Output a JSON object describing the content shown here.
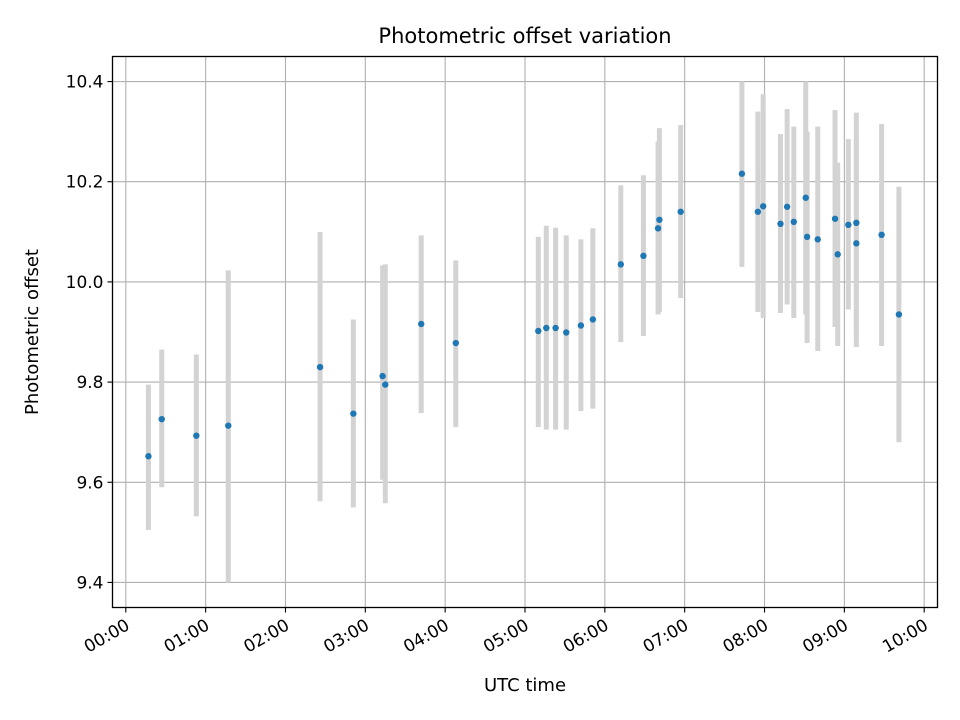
{
  "chart_data": {
    "type": "scatter",
    "title": "Photometric offset variation",
    "xlabel": "UTC time",
    "ylabel": "Photometric offset",
    "xlim": [
      "23:50",
      "10:10"
    ],
    "ylim": [
      9.35,
      10.45
    ],
    "xticks": [
      "00:00",
      "01:00",
      "02:00",
      "03:00",
      "04:00",
      "05:00",
      "06:00",
      "07:00",
      "08:00",
      "09:00",
      "10:00"
    ],
    "yticks": [
      "9.4",
      "9.6",
      "9.8",
      "10.0",
      "10.2",
      "10.4"
    ],
    "grid": true,
    "marker_color": "#1f77b4",
    "errorbar_color": "#d3d3d3",
    "points": [
      {
        "x": "00:17",
        "y": 9.652,
        "ylow": 9.505,
        "yhigh": 9.795
      },
      {
        "x": "00:27",
        "y": 9.726,
        "ylow": 9.59,
        "yhigh": 9.865
      },
      {
        "x": "00:53",
        "y": 9.693,
        "ylow": 9.532,
        "yhigh": 9.855
      },
      {
        "x": "01:17",
        "y": 9.713,
        "ylow": 9.4,
        "yhigh": 10.023
      },
      {
        "x": "02:26",
        "y": 9.83,
        "ylow": 9.562,
        "yhigh": 10.1
      },
      {
        "x": "02:51",
        "y": 9.737,
        "ylow": 9.55,
        "yhigh": 9.925
      },
      {
        "x": "03:13",
        "y": 9.812,
        "ylow": 9.605,
        "yhigh": 10.033
      },
      {
        "x": "03:15",
        "y": 9.795,
        "ylow": 9.558,
        "yhigh": 10.035
      },
      {
        "x": "03:42",
        "y": 9.916,
        "ylow": 9.738,
        "yhigh": 10.093
      },
      {
        "x": "04:08",
        "y": 9.878,
        "ylow": 9.71,
        "yhigh": 10.043
      },
      {
        "x": "05:10",
        "y": 9.902,
        "ylow": 9.71,
        "yhigh": 10.09
      },
      {
        "x": "05:16",
        "y": 9.908,
        "ylow": 9.705,
        "yhigh": 10.112
      },
      {
        "x": "05:23",
        "y": 9.908,
        "ylow": 9.705,
        "yhigh": 10.108
      },
      {
        "x": "05:31",
        "y": 9.899,
        "ylow": 9.705,
        "yhigh": 10.093
      },
      {
        "x": "05:42",
        "y": 9.913,
        "ylow": 9.742,
        "yhigh": 10.085
      },
      {
        "x": "05:51",
        "y": 9.925,
        "ylow": 9.747,
        "yhigh": 10.107
      },
      {
        "x": "06:12",
        "y": 10.035,
        "ylow": 9.88,
        "yhigh": 10.193
      },
      {
        "x": "06:29",
        "y": 10.052,
        "ylow": 9.892,
        "yhigh": 10.213
      },
      {
        "x": "06:40",
        "y": 10.107,
        "ylow": 9.935,
        "yhigh": 10.28
      },
      {
        "x": "06:41",
        "y": 10.124,
        "ylow": 9.94,
        "yhigh": 10.307
      },
      {
        "x": "06:57",
        "y": 10.14,
        "ylow": 9.968,
        "yhigh": 10.313
      },
      {
        "x": "07:43",
        "y": 10.216,
        "ylow": 10.03,
        "yhigh": 10.4
      },
      {
        "x": "07:55",
        "y": 10.14,
        "ylow": 9.94,
        "yhigh": 10.34
      },
      {
        "x": "07:59",
        "y": 10.151,
        "ylow": 9.928,
        "yhigh": 10.375
      },
      {
        "x": "08:12",
        "y": 10.116,
        "ylow": 9.938,
        "yhigh": 10.295
      },
      {
        "x": "08:17",
        "y": 10.15,
        "ylow": 9.955,
        "yhigh": 10.345
      },
      {
        "x": "08:22",
        "y": 10.12,
        "ylow": 9.928,
        "yhigh": 10.31
      },
      {
        "x": "08:31",
        "y": 10.168,
        "ylow": 9.935,
        "yhigh": 10.4
      },
      {
        "x": "08:32",
        "y": 10.09,
        "ylow": 9.878,
        "yhigh": 10.3
      },
      {
        "x": "08:40",
        "y": 10.085,
        "ylow": 9.862,
        "yhigh": 10.31
      },
      {
        "x": "08:53",
        "y": 10.126,
        "ylow": 9.91,
        "yhigh": 10.343
      },
      {
        "x": "08:55",
        "y": 10.055,
        "ylow": 9.872,
        "yhigh": 10.238
      },
      {
        "x": "09:03",
        "y": 10.114,
        "ylow": 9.945,
        "yhigh": 10.285
      },
      {
        "x": "09:09",
        "y": 10.118,
        "ylow": 9.897,
        "yhigh": 10.338
      },
      {
        "x": "09:09",
        "y": 10.077,
        "ylow": 9.87,
        "yhigh": 10.283
      },
      {
        "x": "09:28",
        "y": 10.094,
        "ylow": 9.872,
        "yhigh": 10.315
      },
      {
        "x": "09:41",
        "y": 9.935,
        "ylow": 9.68,
        "yhigh": 10.19
      }
    ]
  }
}
